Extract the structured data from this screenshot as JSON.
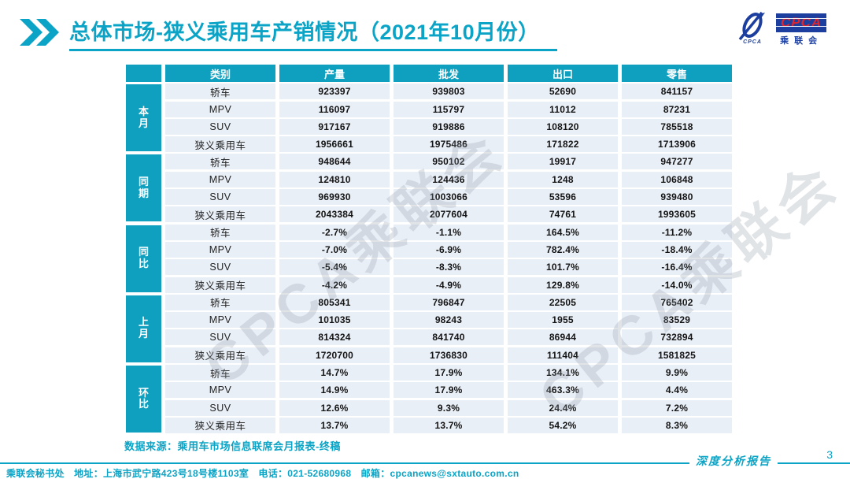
{
  "page": {
    "title": "总体市场-狭义乘用车产销情况（2021年10月份）",
    "page_number": "3",
    "report_type_label": "深度分析报告"
  },
  "logo": {
    "name_en": "CPCA",
    "name_cn": "乘联会",
    "swoosh_caption": "CPCA",
    "colors": {
      "blue": "#1c3f9f",
      "red": "#e0262c"
    }
  },
  "colors": {
    "accent_cyan": "#0ba4c6",
    "table_header_cyan": "#0fa0c0",
    "row_background": "#e9eff7"
  },
  "watermark": {
    "text": "CPCA乘联会"
  },
  "table": {
    "columns": [
      "类别",
      "产量",
      "批发",
      "出口",
      "零售"
    ],
    "groups": [
      {
        "label": "本月",
        "rows": [
          [
            "轿车",
            "923397",
            "939803",
            "52690",
            "841157"
          ],
          [
            "MPV",
            "116097",
            "115797",
            "11012",
            "87231"
          ],
          [
            "SUV",
            "917167",
            "919886",
            "108120",
            "785518"
          ],
          [
            "狭义乘用车",
            "1956661",
            "1975486",
            "171822",
            "1713906"
          ]
        ]
      },
      {
        "label": "同期",
        "rows": [
          [
            "轿车",
            "948644",
            "950102",
            "19917",
            "947277"
          ],
          [
            "MPV",
            "124810",
            "124436",
            "1248",
            "106848"
          ],
          [
            "SUV",
            "969930",
            "1003066",
            "53596",
            "939480"
          ],
          [
            "狭义乘用车",
            "2043384",
            "2077604",
            "74761",
            "1993605"
          ]
        ]
      },
      {
        "label": "同比",
        "rows": [
          [
            "轿车",
            "-2.7%",
            "-1.1%",
            "164.5%",
            "-11.2%"
          ],
          [
            "MPV",
            "-7.0%",
            "-6.9%",
            "782.4%",
            "-18.4%"
          ],
          [
            "SUV",
            "-5.4%",
            "-8.3%",
            "101.7%",
            "-16.4%"
          ],
          [
            "狭义乘用车",
            "-4.2%",
            "-4.9%",
            "129.8%",
            "-14.0%"
          ]
        ]
      },
      {
        "label": "上月",
        "rows": [
          [
            "轿车",
            "805341",
            "796847",
            "22505",
            "765402"
          ],
          [
            "MPV",
            "101035",
            "98243",
            "1955",
            "83529"
          ],
          [
            "SUV",
            "814324",
            "841740",
            "86944",
            "732894"
          ],
          [
            "狭义乘用车",
            "1720700",
            "1736830",
            "111404",
            "1581825"
          ]
        ]
      },
      {
        "label": "环比",
        "rows": [
          [
            "轿车",
            "14.7%",
            "17.9%",
            "134.1%",
            "9.9%"
          ],
          [
            "MPV",
            "14.9%",
            "17.9%",
            "463.3%",
            "4.4%"
          ],
          [
            "SUV",
            "12.6%",
            "9.3%",
            "24.4%",
            "7.2%"
          ],
          [
            "狭义乘用车",
            "13.7%",
            "13.7%",
            "54.2%",
            "8.3%"
          ]
        ]
      }
    ]
  },
  "footnote": {
    "source_label": "数据来源：乘用车市场信息联席会月报表-终稿"
  },
  "footer": {
    "contact": "乘联会秘书处　地址：上海市武宁路423号18号楼1103室　电话：021-52680968　邮箱：cpcanews@sxtauto.com.cn"
  }
}
